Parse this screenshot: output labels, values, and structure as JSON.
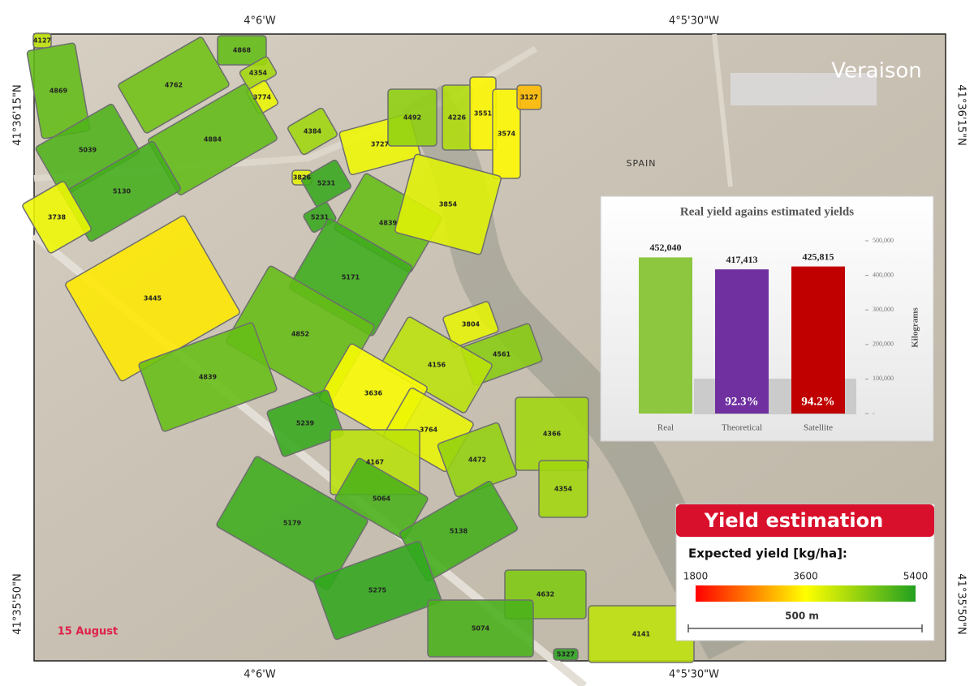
{
  "map": {
    "title": "Veraison",
    "country": "SPAIN",
    "date": "15 August",
    "coords": {
      "top": [
        "4°6'W",
        "4°5'30\"W"
      ],
      "bottom": [
        "4°6'W",
        "4°5'30\"W"
      ],
      "left": [
        "41°36'15\"N",
        "41°35'50\"N"
      ],
      "right": [
        "41°36'15\"N",
        "41°35'50\"N"
      ]
    },
    "fields": [
      4127,
      4869,
      4762,
      4868,
      4354,
      3774,
      4884,
      5039,
      5130,
      3738,
      4384,
      3727,
      4492,
      4226,
      3551,
      3574,
      3127,
      3826,
      5231,
      5231,
      4839,
      3854,
      5171,
      3445,
      4852,
      4839,
      3804,
      4561,
      4156,
      3636,
      3764,
      5239,
      4167,
      4472,
      4366,
      4354,
      5179,
      5064,
      5138,
      5275,
      4632,
      5074,
      4141,
      5327
    ]
  },
  "chart_data": {
    "type": "bar",
    "title": "Real yield agains estimated yields",
    "categories": [
      "Real",
      "Theoretical",
      "Satellite"
    ],
    "values": [
      452040,
      417413,
      425815
    ],
    "value_labels": [
      "452,040",
      "417,413",
      "425,815"
    ],
    "colors": [
      "#8dc63f",
      "#7030a0",
      "#c00000"
    ],
    "annotations": [
      "92.3%",
      "94.2%"
    ],
    "ylim": [
      0,
      500000
    ],
    "yticks": [
      {
        "value": 0,
        "label": "-"
      },
      {
        "value": 100000,
        "label": "100,000"
      },
      {
        "value": 200000,
        "label": "200,000"
      },
      {
        "value": 300000,
        "label": "300,000"
      },
      {
        "value": 400000,
        "label": "400,000"
      },
      {
        "value": 500000,
        "label": "500,000"
      }
    ],
    "ylabel": "Kilograms"
  },
  "legend": {
    "title": "Yield estimation",
    "subtitle": "Expected yield [kg/ha]:",
    "ticks": [
      1800,
      3600,
      5400
    ],
    "colors": [
      "#ff0000",
      "#ffff00",
      "#22a020"
    ],
    "scale_label": "500 m"
  }
}
